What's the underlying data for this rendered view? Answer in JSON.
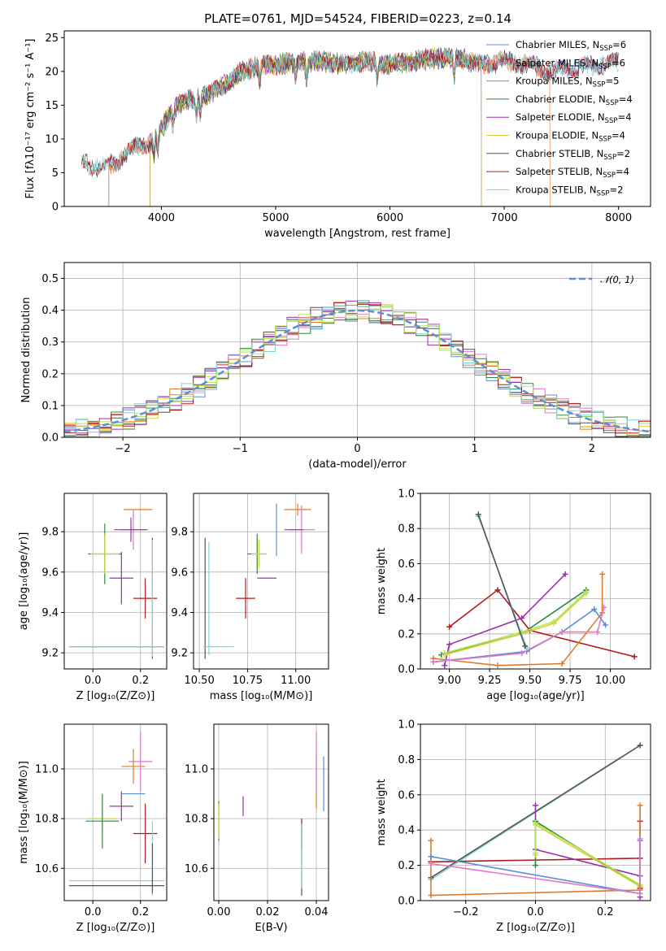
{
  "figure": {
    "title": "PLATE=0761, MJD=54524, FIBERID=0223, z=0.14"
  },
  "chart_data": [
    {
      "id": "spectrum",
      "type": "line",
      "xlabel": "wavelength [Angstrom, rest frame]",
      "ylabel": "Flux [fλ10⁻¹⁷ erg cm⁻² s⁻¹ A⁻¹]",
      "xlim": [
        3150,
        8280
      ],
      "ylim": [
        0,
        26
      ],
      "xticks": [
        "4000",
        "5000",
        "6000",
        "7000",
        "8000"
      ],
      "xtick_values": [
        4000,
        5000,
        6000,
        7000,
        8000
      ],
      "yticks": [
        "0",
        "5",
        "10",
        "15",
        "20",
        "25"
      ],
      "ytick_values": [
        0,
        5,
        10,
        15,
        20,
        25
      ],
      "legend_placement": "top-right",
      "continuum": {
        "x": [
          3300,
          3400,
          3500,
          3600,
          3700,
          3800,
          3900,
          4000,
          4100,
          4200,
          4300,
          4400,
          4500,
          4600,
          4700,
          4800,
          4900,
          5000,
          5200,
          5400,
          5600,
          5800,
          6000,
          6200,
          6400,
          6600,
          6800,
          7000,
          7200,
          7400,
          7600,
          7800,
          8000
        ],
        "y": [
          6.5,
          6.0,
          5.8,
          6.5,
          8.0,
          9.0,
          9.5,
          11.5,
          14.5,
          15.5,
          16.0,
          16.5,
          17.5,
          18.5,
          20.0,
          20.5,
          21.0,
          21.0,
          21.5,
          21.5,
          21.0,
          21.5,
          21.0,
          21.5,
          22.0,
          22.0,
          21.0,
          21.5,
          21.0,
          20.0,
          20.5,
          21.0,
          21.5
        ]
      },
      "series": [
        {
          "name": "Chabrier MILES, N_SSP=6",
          "color": "#5b8fd8",
          "xrange": [
            3540,
            8000
          ]
        },
        {
          "name": "Salpeter MILES, N_SSP=6",
          "color": "#e377c2",
          "xrange": [
            3540,
            8000
          ]
        },
        {
          "name": "Kroupa MILES, N_SSP=5",
          "color": "#e07b2a",
          "xrange": [
            3540,
            7400
          ]
        },
        {
          "name": "Chabrier ELODIE, N_SSP=4",
          "color": "#2c8a3c",
          "xrange": [
            3900,
            6800
          ]
        },
        {
          "name": "Salpeter ELODIE, N_SSP=4",
          "color": "#9b30b0",
          "xrange": [
            3900,
            6800
          ]
        },
        {
          "name": "Kroupa ELODIE, N_SSP=4",
          "color": "#d4d43a",
          "xrange": [
            3900,
            6800
          ]
        },
        {
          "name": "Chabrier STELIB, N_SSP=2",
          "color": "#555555",
          "xrange": [
            3300,
            8000
          ]
        },
        {
          "name": "Salpeter STELIB, N_SSP=4",
          "color": "#b01a1a",
          "xrange": [
            3300,
            8000
          ]
        },
        {
          "name": "Kroupa STELIB, N_SSP=2",
          "color": "#7fd4d4",
          "xrange": [
            3300,
            8000
          ]
        }
      ],
      "legend": [
        {
          "base": "Chabrier MILES, N",
          "sub": "SSP",
          "tail": "=6",
          "color": "#5b8fd8"
        },
        {
          "base": "Salpeter MILES, N",
          "sub": "SSP",
          "tail": "=6",
          "color": "#e377c2"
        },
        {
          "base": "Kroupa MILES, N",
          "sub": "SSP",
          "tail": "=5",
          "color": "#e07b2a"
        },
        {
          "base": "Chabrier ELODIE, N",
          "sub": "SSP",
          "tail": "=4",
          "color": "#2c8a3c"
        },
        {
          "base": "Salpeter ELODIE, N",
          "sub": "SSP",
          "tail": "=4",
          "color": "#9b30b0"
        },
        {
          "base": "Kroupa ELODIE, N",
          "sub": "SSP",
          "tail": "=4",
          "color": "#d4d43a"
        },
        {
          "base": "Chabrier STELIB, N",
          "sub": "SSP",
          "tail": "=2",
          "color": "#555555"
        },
        {
          "base": "Salpeter STELIB, N",
          "sub": "SSP",
          "tail": "=4",
          "color": "#b01a1a"
        },
        {
          "base": "Kroupa STELIB, N",
          "sub": "SSP",
          "tail": "=2",
          "color": "#7fd4d4"
        }
      ]
    },
    {
      "id": "residuals",
      "type": "histogram",
      "xlabel": "(data-model)/error",
      "ylabel": "Normed distribution",
      "xlim": [
        -2.5,
        2.5
      ],
      "ylim": [
        0,
        0.55
      ],
      "xticks": [
        "−2",
        "−1",
        "0",
        "1",
        "2"
      ],
      "xtick_values": [
        -2,
        -1,
        0,
        1,
        2
      ],
      "yticks": [
        "0.0",
        "0.1",
        "0.2",
        "0.3",
        "0.4",
        "0.5"
      ],
      "ytick_values": [
        0,
        0.1,
        0.2,
        0.3,
        0.4,
        0.5
      ],
      "grid": true,
      "legend_placement": "top-right",
      "normal_label": "𝒩(0, 1)",
      "normal_color": "#5b8fd8",
      "bin_edges_start": -2.5,
      "bin_width": 0.1,
      "series_colors": [
        "#5b8fd8",
        "#e377c2",
        "#e07b2a",
        "#2c8a3c",
        "#9b30b0",
        "#d4d43a",
        "#555555",
        "#b01a1a",
        "#7fd4d4",
        "#b5e35a"
      ]
    },
    {
      "id": "age-vs-Z",
      "type": "errorbar",
      "xlabel": "Z [log₁₀(Z/Z⊙)]",
      "ylabel": "age  [log₁₀(age/yr)]",
      "xlim": [
        -0.12,
        0.31
      ],
      "ylim": [
        9.12,
        9.99
      ],
      "xticks": [
        "0.0",
        "0.2"
      ],
      "xtick_values": [
        0.0,
        0.2
      ],
      "yticks": [
        "9.2",
        "9.4",
        "9.6",
        "9.8"
      ],
      "ytick_values": [
        9.2,
        9.4,
        9.6,
        9.8
      ],
      "grid": true,
      "points": [
        {
          "x": 0.19,
          "xerr": 0.06,
          "y": 9.91,
          "yerr": 0.0,
          "color": "#e07b2a"
        },
        {
          "x": 0.17,
          "xerr": 0.05,
          "y": 9.81,
          "yerr": 0.1,
          "color": "#e377c2"
        },
        {
          "x": 0.16,
          "xerr": 0.07,
          "y": 9.81,
          "yerr": 0.06,
          "color": "#9b30b0"
        },
        {
          "x": 0.05,
          "xerr": 0.07,
          "y": 9.69,
          "yerr": 0.15,
          "color": "#2c8a3c"
        },
        {
          "x": 0.05,
          "xerr": 0.06,
          "y": 9.69,
          "yerr": 0.1,
          "color": "#d4d43a"
        },
        {
          "x": 0.12,
          "xerr": 0.05,
          "y": 9.57,
          "yerr": 0.13,
          "color": "#9b30b0"
        },
        {
          "x": 0.22,
          "xerr": 0.05,
          "y": 9.47,
          "yerr": 0.1,
          "color": "#b01a1a"
        },
        {
          "x": 0.25,
          "xerr": 0.0,
          "y": 9.47,
          "yerr": 0.3,
          "color": "#555555"
        },
        {
          "x": 0.25,
          "xerr": 0.0,
          "y": 9.47,
          "yerr": 0.29,
          "color": "#7fd4d4"
        },
        {
          "x": 0.1,
          "xerr": 0.2,
          "y": 9.23,
          "yerr": 0.0,
          "color": "#555555"
        },
        {
          "x": 0.1,
          "xerr": 0.2,
          "y": 9.23,
          "yerr": 0.0,
          "color": "#7fd4d4"
        }
      ]
    },
    {
      "id": "age-vs-mass",
      "type": "errorbar",
      "xlabel": "mass [log₁₀(M/M⊙)]",
      "ylabel": "",
      "xlim": [
        10.47,
        11.17
      ],
      "ylim": [
        9.12,
        9.99
      ],
      "xticks": [
        "10.50",
        "10.75",
        "11.00"
      ],
      "xtick_values": [
        10.5,
        10.75,
        11.0
      ],
      "yticks": [
        "9.2",
        "9.4",
        "9.6",
        "9.8"
      ],
      "ytick_values": [
        9.2,
        9.4,
        9.6,
        9.8
      ],
      "grid": true,
      "points": [
        {
          "x": 11.01,
          "xerr": 0.07,
          "y": 9.91,
          "yerr": 0.03,
          "color": "#e07b2a"
        },
        {
          "x": 11.03,
          "xerr": 0.07,
          "y": 9.81,
          "yerr": 0.12,
          "color": "#e377c2"
        },
        {
          "x": 10.9,
          "xerr": 0.0,
          "y": 9.81,
          "yerr": 0.13,
          "color": "#5b8fd8"
        },
        {
          "x": 10.99,
          "xerr": 0.05,
          "y": 9.81,
          "yerr": 0.0,
          "color": "#9b30b0"
        },
        {
          "x": 10.8,
          "xerr": 0.05,
          "y": 9.69,
          "yerr": 0.1,
          "color": "#2c8a3c"
        },
        {
          "x": 10.81,
          "xerr": 0.04,
          "y": 9.69,
          "yerr": 0.07,
          "color": "#d4d43a"
        },
        {
          "x": 10.85,
          "xerr": 0.05,
          "y": 9.57,
          "yerr": 0.0,
          "color": "#9b30b0"
        },
        {
          "x": 10.74,
          "xerr": 0.05,
          "y": 9.47,
          "yerr": 0.1,
          "color": "#b01a1a"
        },
        {
          "x": 10.53,
          "xerr": 0.0,
          "y": 9.47,
          "yerr": 0.3,
          "color": "#555555"
        },
        {
          "x": 10.55,
          "xerr": 0.0,
          "y": 9.47,
          "yerr": 0.28,
          "color": "#7fd4d4"
        },
        {
          "x": 10.6,
          "xerr": 0.08,
          "y": 9.23,
          "yerr": 0.0,
          "color": "#7fd4d4"
        }
      ]
    },
    {
      "id": "weight-vs-age",
      "type": "line",
      "xlabel": "age  [log₁₀(age/yr)]",
      "ylabel": "mass weight",
      "xlim": [
        8.82,
        10.25
      ],
      "ylim": [
        0,
        1
      ],
      "xticks": [
        "9.00",
        "9.25",
        "9.50",
        "9.75",
        "10.00"
      ],
      "xtick_values": [
        9.0,
        9.25,
        9.5,
        9.75,
        10.0
      ],
      "yticks": [
        "0.0",
        "0.2",
        "0.4",
        "0.6",
        "0.8",
        "1.0"
      ],
      "ytick_values": [
        0,
        0.2,
        0.4,
        0.6,
        0.8,
        1.0
      ],
      "grid": true,
      "series": [
        {
          "color": "#b01a1a",
          "x": [
            9.0,
            9.3,
            9.5,
            10.15
          ],
          "y": [
            0.24,
            0.45,
            0.22,
            0.07
          ]
        },
        {
          "color": "#9b30b0",
          "x": [
            8.97,
            9.0,
            9.45,
            9.72
          ],
          "y": [
            0.02,
            0.14,
            0.29,
            0.54
          ]
        },
        {
          "color": "#2c8a3c",
          "x": [
            8.95,
            9.45,
            9.85
          ],
          "y": [
            0.08,
            0.2,
            0.45
          ]
        },
        {
          "color": "#d4d43a",
          "x": [
            8.97,
            9.45,
            9.65,
            9.85
          ],
          "y": [
            0.08,
            0.2,
            0.26,
            0.43
          ]
        },
        {
          "color": "#b5e35a",
          "x": [
            8.97,
            9.45,
            9.65,
            9.85
          ],
          "y": [
            0.09,
            0.21,
            0.27,
            0.44
          ]
        },
        {
          "color": "#e07b2a",
          "x": [
            8.9,
            9.3,
            9.7,
            9.95,
            9.95
          ],
          "y": [
            0.06,
            0.02,
            0.03,
            0.32,
            0.54
          ]
        },
        {
          "color": "#5b8fd8",
          "x": [
            8.9,
            9.48,
            9.7,
            9.9,
            9.97
          ],
          "y": [
            0.04,
            0.1,
            0.21,
            0.34,
            0.25
          ]
        },
        {
          "color": "#e377c2",
          "x": [
            8.9,
            9.45,
            9.7,
            9.92,
            9.96
          ],
          "y": [
            0.04,
            0.09,
            0.21,
            0.21,
            0.35
          ]
        },
        {
          "color": "#7fd4d4",
          "x": [
            9.18,
            9.48
          ],
          "y": [
            0.87,
            0.12
          ]
        },
        {
          "color": "#555555",
          "x": [
            9.18,
            9.47
          ],
          "y": [
            0.88,
            0.13
          ]
        }
      ]
    },
    {
      "id": "mass-vs-Z",
      "type": "errorbar",
      "xlabel": "Z [log₁₀(Z/Z⊙)]",
      "ylabel": "mass [log₁₀(M/M⊙)]",
      "xlim": [
        -0.12,
        0.31
      ],
      "ylim": [
        10.47,
        11.18
      ],
      "xticks": [
        "0.0",
        "0.2"
      ],
      "xtick_values": [
        0.0,
        0.2
      ],
      "yticks": [
        "10.6",
        "10.8",
        "11.0"
      ],
      "ytick_values": [
        10.6,
        10.8,
        11.0
      ],
      "grid": true,
      "points": [
        {
          "x": 0.2,
          "xerr": 0.05,
          "y": 11.03,
          "yerr": 0.12,
          "color": "#e377c2"
        },
        {
          "x": 0.17,
          "xerr": 0.05,
          "y": 11.01,
          "yerr": 0.07,
          "color": "#e07b2a"
        },
        {
          "x": 0.17,
          "xerr": 0.05,
          "y": 10.9,
          "yerr": 0.0,
          "color": "#5b8fd8"
        },
        {
          "x": 0.12,
          "xerr": 0.05,
          "y": 10.85,
          "yerr": 0.06,
          "color": "#9b30b0"
        },
        {
          "x": 0.04,
          "xerr": 0.06,
          "y": 10.8,
          "yerr": 0.06,
          "color": "#d4d43a"
        },
        {
          "x": 0.04,
          "xerr": 0.07,
          "y": 10.79,
          "yerr": 0.11,
          "color": "#2c8a3c"
        },
        {
          "x": 0.22,
          "xerr": 0.05,
          "y": 10.74,
          "yerr": 0.12,
          "color": "#b01a1a"
        },
        {
          "x": 0.25,
          "xerr": 0.0,
          "y": 10.64,
          "yerr": 0.15,
          "color": "#7fd4d4"
        },
        {
          "x": 0.1,
          "xerr": 0.2,
          "y": 10.55,
          "yerr": 0.0,
          "color": "#7fd4d4"
        },
        {
          "x": 0.1,
          "xerr": 0.2,
          "y": 10.53,
          "yerr": 0.0,
          "color": "#555555"
        },
        {
          "x": 0.25,
          "xerr": 0.0,
          "y": 10.6,
          "yerr": 0.1,
          "color": "#555555"
        }
      ]
    },
    {
      "id": "mass-vs-EBV",
      "type": "errorbar",
      "xlabel": "E(B-V)",
      "ylabel": "",
      "xlim": [
        -0.002,
        0.045
      ],
      "ylim": [
        10.47,
        11.18
      ],
      "xticks": [
        "0.00",
        "0.02",
        "0.04"
      ],
      "xtick_values": [
        0.0,
        0.02,
        0.04
      ],
      "yticks": [
        "10.6",
        "10.8",
        "11.0"
      ],
      "ytick_values": [
        10.6,
        10.8,
        11.0
      ],
      "grid": true,
      "points": [
        {
          "x": 0.0,
          "xerr": 0,
          "y": 10.79,
          "yerr": 0.08,
          "color": "#2c8a3c"
        },
        {
          "x": 0.0,
          "xerr": 0,
          "y": 10.79,
          "yerr": 0.07,
          "color": "#d4d43a"
        },
        {
          "x": 0.01,
          "xerr": 0,
          "y": 10.85,
          "yerr": 0.04,
          "color": "#9b30b0"
        },
        {
          "x": 0.034,
          "xerr": 0,
          "y": 10.74,
          "yerr": 0.06,
          "color": "#b01a1a"
        },
        {
          "x": 0.034,
          "xerr": 0,
          "y": 10.64,
          "yerr": 0.15,
          "color": "#555555"
        },
        {
          "x": 0.034,
          "xerr": 0,
          "y": 10.65,
          "yerr": 0.13,
          "color": "#7fd4d4"
        },
        {
          "x": 0.04,
          "xerr": 0,
          "y": 10.95,
          "yerr": 0.11,
          "color": "#e07b2a"
        },
        {
          "x": 0.04,
          "xerr": 0,
          "y": 11.03,
          "yerr": 0.12,
          "color": "#e377c2"
        },
        {
          "x": 0.043,
          "xerr": 0,
          "y": 10.94,
          "yerr": 0.11,
          "color": "#5b8fd8"
        }
      ]
    },
    {
      "id": "weight-vs-Z",
      "type": "line",
      "xlabel": "Z [log₁₀(Z/Z⊙)]",
      "ylabel": "mass weight",
      "xlim": [
        -0.33,
        0.33
      ],
      "ylim": [
        0,
        1
      ],
      "xticks": [
        "−0.2",
        "0.0",
        "0.2"
      ],
      "xtick_values": [
        -0.2,
        0.0,
        0.2
      ],
      "yticks": [
        "0.0",
        "0.2",
        "0.4",
        "0.6",
        "0.8",
        "1.0"
      ],
      "ytick_values": [
        0,
        0.2,
        0.4,
        0.6,
        0.8,
        1.0
      ],
      "grid": true,
      "series": [
        {
          "color": "#7fd4d4",
          "x": [
            -0.3,
            0.3
          ],
          "y": [
            0.12,
            0.88
          ]
        },
        {
          "color": "#555555",
          "x": [
            -0.3,
            0.3
          ],
          "y": [
            0.13,
            0.88
          ]
        },
        {
          "color": "#b01a1a",
          "x": [
            -0.3,
            0.3,
            0.3,
            0.3
          ],
          "y": [
            0.22,
            0.24,
            0.45,
            0.07
          ]
        },
        {
          "color": "#9b30b0",
          "x": [
            0.0,
            0.0,
            0.3,
            0.3
          ],
          "y": [
            0.54,
            0.29,
            0.14,
            0.02
          ]
        },
        {
          "color": "#2c8a3c",
          "x": [
            0.0,
            0.0,
            0.3
          ],
          "y": [
            0.2,
            0.45,
            0.08
          ]
        },
        {
          "color": "#d4d43a",
          "x": [
            0.0,
            0.0,
            0.3
          ],
          "y": [
            0.26,
            0.43,
            0.08
          ]
        },
        {
          "color": "#b5e35a",
          "x": [
            0.0,
            0.0,
            0.3
          ],
          "y": [
            0.27,
            0.44,
            0.09
          ]
        },
        {
          "color": "#e07b2a",
          "x": [
            -0.3,
            -0.3,
            0.3,
            0.3
          ],
          "y": [
            0.34,
            0.03,
            0.06,
            0.54
          ]
        },
        {
          "color": "#5b8fd8",
          "x": [
            -0.3,
            0.3,
            0.3
          ],
          "y": [
            0.25,
            0.04,
            0.34
          ]
        },
        {
          "color": "#e377c2",
          "x": [
            -0.3,
            0.3,
            0.3
          ],
          "y": [
            0.21,
            0.04,
            0.35
          ]
        }
      ]
    }
  ]
}
